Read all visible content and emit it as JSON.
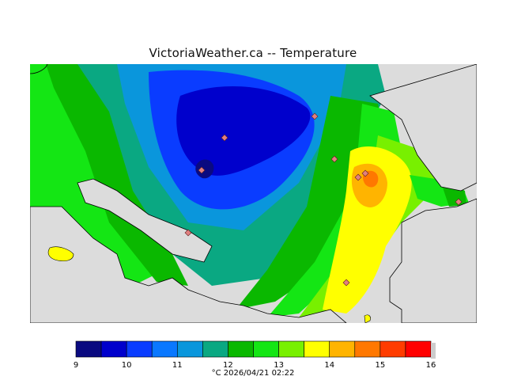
{
  "title": "VictoriaWeather.ca  --  Temperature",
  "footer": "°C  2026/04/21 02:22",
  "legend": {
    "ticks": [
      "9",
      "10",
      "11",
      "12",
      "13",
      "14",
      "15",
      "16"
    ],
    "colors": [
      "#0a0a80",
      "#0000cc",
      "#0a3cff",
      "#0a78ff",
      "#0a96dc",
      "#0aa882",
      "#0ab800",
      "#14e614",
      "#78f000",
      "#ffff00",
      "#ffb400",
      "#ff7800",
      "#ff3c00",
      "#ff0000"
    ]
  },
  "map": {
    "land_background": "#dcdcdc"
  }
}
